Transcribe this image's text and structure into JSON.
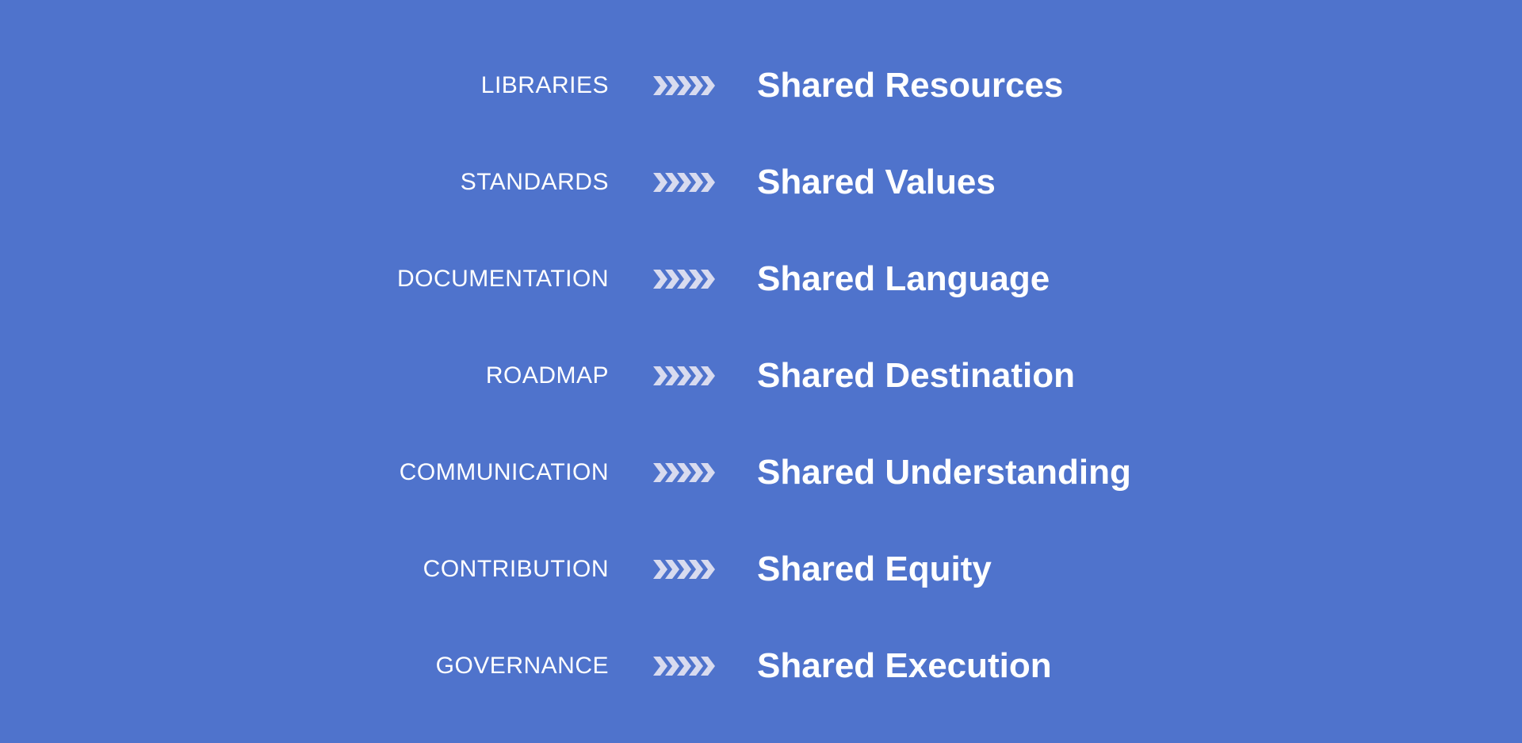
{
  "colors": {
    "background": "#4f73cc",
    "chevron": "#d8dbef",
    "text": "#ffffff"
  },
  "arrow_icon": "chevrons-right-icon",
  "rows": [
    {
      "label": "LIBRARIES",
      "value": "Shared Resources"
    },
    {
      "label": "STANDARDS",
      "value": "Shared Values"
    },
    {
      "label": "DOCUMENTATION",
      "value": "Shared Language"
    },
    {
      "label": "ROADMAP",
      "value": "Shared Destination"
    },
    {
      "label": "COMMUNICATION",
      "value": "Shared Understanding"
    },
    {
      "label": "CONTRIBUTION",
      "value": "Shared Equity"
    },
    {
      "label": "GOVERNANCE",
      "value": "Shared Execution"
    }
  ]
}
